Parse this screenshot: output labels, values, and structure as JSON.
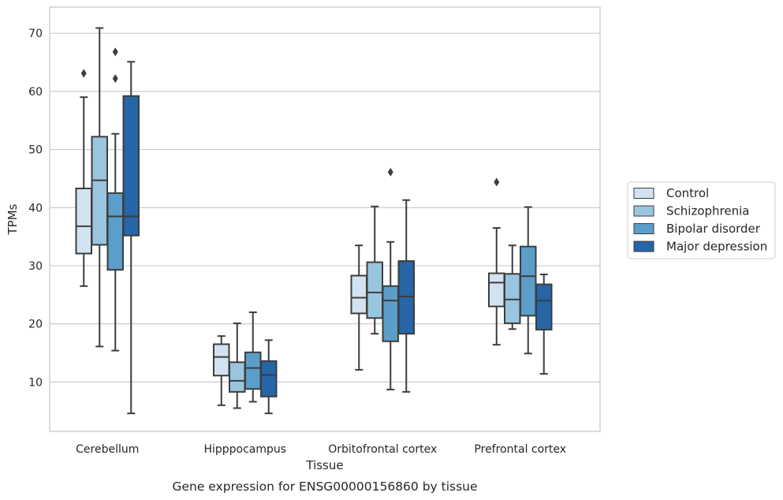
{
  "chart_data": {
    "type": "boxplot",
    "caption": "Gene expression for ENSG00000156860 by tissue",
    "xlabel": "Tissue",
    "ylabel": "TPMs",
    "ylim": [
      1.5,
      74.5
    ],
    "yticks": [
      10,
      20,
      30,
      40,
      50,
      60,
      70
    ],
    "grid": "horizontal",
    "legend_position": "right",
    "categories": [
      "Cerebellum",
      "Hipppocampus",
      "Orbitofrontal cortex",
      "Prefrontal cortex"
    ],
    "series": [
      {
        "name": "Control",
        "color": "#d2e2f1",
        "boxes": [
          {
            "whisker_low": 26.5,
            "q1": 32.1,
            "median": 36.8,
            "q3": 43.3,
            "whisker_high": 59.0,
            "outliers": [
              63.1
            ]
          },
          {
            "whisker_low": 6.0,
            "q1": 11.1,
            "median": 14.3,
            "q3": 16.5,
            "whisker_high": 17.9,
            "outliers": []
          },
          {
            "whisker_low": 12.1,
            "q1": 21.8,
            "median": 24.5,
            "q3": 28.3,
            "whisker_high": 33.5,
            "outliers": []
          },
          {
            "whisker_low": 16.4,
            "q1": 23.0,
            "median": 27.1,
            "q3": 28.7,
            "whisker_high": 36.5,
            "outliers": [
              44.4
            ]
          }
        ]
      },
      {
        "name": "Schizophrenia",
        "color": "#9ac5df",
        "boxes": [
          {
            "whisker_low": 16.1,
            "q1": 33.6,
            "median": 44.7,
            "q3": 52.2,
            "whisker_high": 70.9,
            "outliers": []
          },
          {
            "whisker_low": 5.5,
            "q1": 8.3,
            "median": 10.2,
            "q3": 13.4,
            "whisker_high": 20.1,
            "outliers": []
          },
          {
            "whisker_low": 18.3,
            "q1": 21.0,
            "median": 25.4,
            "q3": 30.6,
            "whisker_high": 40.2,
            "outliers": []
          },
          {
            "whisker_low": 19.1,
            "q1": 20.1,
            "median": 24.2,
            "q3": 28.6,
            "whisker_high": 33.5,
            "outliers": []
          }
        ]
      },
      {
        "name": "Bipolar disorder",
        "color": "#5a9ec9",
        "boxes": [
          {
            "whisker_low": 15.4,
            "q1": 29.3,
            "median": 38.5,
            "q3": 42.5,
            "whisker_high": 52.7,
            "outliers": [
              66.8,
              62.2
            ]
          },
          {
            "whisker_low": 6.6,
            "q1": 8.8,
            "median": 12.4,
            "q3": 15.1,
            "whisker_high": 22.0,
            "outliers": []
          },
          {
            "whisker_low": 8.7,
            "q1": 17.0,
            "median": 24.0,
            "q3": 26.5,
            "whisker_high": 34.1,
            "outliers": [
              46.1
            ]
          },
          {
            "whisker_low": 14.9,
            "q1": 21.4,
            "median": 28.2,
            "q3": 33.3,
            "whisker_high": 40.1,
            "outliers": []
          }
        ]
      },
      {
        "name": "Major depression",
        "color": "#2665a6",
        "boxes": [
          {
            "whisker_low": 4.6,
            "q1": 35.2,
            "median": 38.5,
            "q3": 59.2,
            "whisker_high": 65.1,
            "outliers": []
          },
          {
            "whisker_low": 4.6,
            "q1": 7.5,
            "median": 11.2,
            "q3": 13.6,
            "whisker_high": 17.2,
            "outliers": []
          },
          {
            "whisker_low": 8.3,
            "q1": 18.3,
            "median": 24.7,
            "q3": 30.8,
            "whisker_high": 41.3,
            "outliers": []
          },
          {
            "whisker_low": 11.4,
            "q1": 19.0,
            "median": 24.0,
            "q3": 26.8,
            "whisker_high": 28.5,
            "outliers": []
          }
        ]
      }
    ]
  }
}
